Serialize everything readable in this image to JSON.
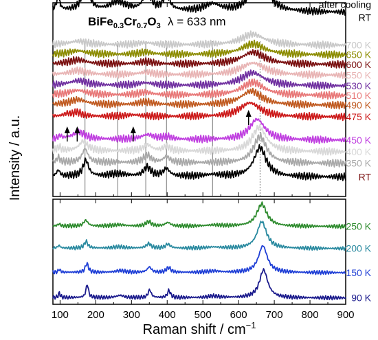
{
  "chart_data": {
    "type": "line",
    "title_parts": {
      "formula_a": "BiFe",
      "formula_sub1": "0.3",
      "formula_b": "Cr",
      "formula_sub2": "0.7",
      "formula_c": "O",
      "formula_sub3": "3",
      "wavelength": "λ = 633 nm"
    },
    "xlabel_main": "Raman shift / cm",
    "xlabel_sup": "−1",
    "ylabel": "Intensity / a.u.",
    "xlim": [
      80,
      900
    ],
    "xticks": [
      100,
      200,
      300,
      400,
      500,
      600,
      700,
      800,
      900
    ],
    "phonon_lines_cm1": [
      170,
      262,
      340,
      398,
      527,
      660
    ],
    "arrows_cm1": [
      120,
      148,
      305,
      628
    ],
    "panels": [
      {
        "name": "upper",
        "series": [
          {
            "label": "after cooling",
            "label2": "RT",
            "color": "#000000",
            "wide": true,
            "base": 0.95,
            "amp": 1.0,
            "bg": 0.05,
            "peaks": [
              [
                95,
                0.28,
                5
              ],
              [
                172,
                0.78,
                9
              ],
              [
                262,
                0.18,
                25
              ],
              [
                344,
                0.4,
                12
              ],
              [
                398,
                0.32,
                11
              ],
              [
                527,
                0.14,
                25
              ],
              [
                660,
                1.0,
                21
              ]
            ]
          },
          {
            "label": "700 K",
            "color": "#c8c8c8",
            "base": 0.78,
            "amp": 0.25,
            "bg": 0.05,
            "peaks": [
              [
                150,
                0.3,
                30
              ],
              [
                340,
                0.18,
                25
              ],
              [
                640,
                0.9,
                40
              ]
            ]
          },
          {
            "label": "650 K",
            "color": "#8c8c00",
            "base": 0.73,
            "amp": 0.25,
            "bg": 0.05,
            "peaks": [
              [
                150,
                0.3,
                30
              ],
              [
                340,
                0.18,
                25
              ],
              [
                640,
                0.9,
                40
              ]
            ]
          },
          {
            "label": "600 K",
            "color": "#7a1010",
            "base": 0.68,
            "amp": 0.28,
            "bg": 0.05,
            "peaks": [
              [
                150,
                0.3,
                30
              ],
              [
                340,
                0.18,
                25
              ],
              [
                640,
                0.9,
                40
              ]
            ]
          },
          {
            "label": "550 K",
            "color": "#e8b4b4",
            "base": 0.625,
            "amp": 0.28,
            "bg": 0.05,
            "peaks": [
              [
                150,
                0.3,
                30
              ],
              [
                340,
                0.18,
                25
              ],
              [
                640,
                0.9,
                40
              ]
            ]
          },
          {
            "label": "530 K",
            "color": "#7030a0",
            "base": 0.57,
            "amp": 0.3,
            "bg": 0.05,
            "peaks": [
              [
                150,
                0.32,
                30
              ],
              [
                340,
                0.18,
                25
              ],
              [
                640,
                0.9,
                38
              ]
            ]
          },
          {
            "label": "510 K",
            "color": "#e87878",
            "base": 0.52,
            "amp": 0.3,
            "bg": 0.05,
            "peaks": [
              [
                150,
                0.32,
                30
              ],
              [
                340,
                0.18,
                25
              ],
              [
                640,
                0.9,
                38
              ]
            ]
          },
          {
            "label": "490 K",
            "color": "#c05a20",
            "base": 0.47,
            "amp": 0.32,
            "bg": 0.05,
            "peaks": [
              [
                150,
                0.32,
                28
              ],
              [
                340,
                0.18,
                25
              ],
              [
                635,
                0.9,
                36
              ]
            ]
          },
          {
            "label": "475 K",
            "color": "#cc1a1a",
            "wide": true,
            "base": 0.41,
            "amp": 0.32,
            "bg": 0.05,
            "peaks": [
              [
                120,
                0.15,
                12
              ],
              [
                148,
                0.25,
                14
              ],
              [
                305,
                0.1,
                25
              ],
              [
                632,
                0.9,
                34
              ]
            ]
          },
          {
            "label": "450 K",
            "color": "#c040e0",
            "base": 0.29,
            "amp": 0.45,
            "bg": 0.05,
            "peaks": [
              [
                100,
                0.12,
                6
              ],
              [
                152,
                0.32,
                22
              ],
              [
                345,
                0.22,
                20
              ],
              [
                400,
                0.12,
                15
              ],
              [
                652,
                0.95,
                26
              ]
            ]
          },
          {
            "label": "400 K",
            "color": "#d8d8d8",
            "base": 0.23,
            "amp": 0.5,
            "bg": 0.05,
            "peaks": [
              [
                97,
                0.15,
                6
              ],
              [
                165,
                0.4,
                14
              ],
              [
                345,
                0.25,
                14
              ],
              [
                398,
                0.18,
                12
              ],
              [
                658,
                1.0,
                24
              ]
            ]
          },
          {
            "label": "350 K",
            "color": "#a8a8a8",
            "base": 0.17,
            "amp": 0.55,
            "bg": 0.05,
            "peaks": [
              [
                95,
                0.18,
                5
              ],
              [
                170,
                0.5,
                10
              ],
              [
                344,
                0.28,
                12
              ],
              [
                398,
                0.22,
                11
              ],
              [
                660,
                1.0,
                22
              ]
            ]
          },
          {
            "label": "RT",
            "color": "#000000",
            "labelColor": "#7a1010",
            "base": 0.1,
            "amp": 0.6,
            "bg": 0.04,
            "peaks": [
              [
                95,
                0.2,
                5
              ],
              [
                172,
                0.55,
                9
              ],
              [
                262,
                0.08,
                25
              ],
              [
                344,
                0.3,
                12
              ],
              [
                398,
                0.25,
                11
              ],
              [
                527,
                0.06,
                25
              ],
              [
                660,
                1.0,
                21
              ]
            ]
          }
        ]
      },
      {
        "name": "lower",
        "series": [
          {
            "label": "250 K",
            "color": "#2e8b2e",
            "base": 0.74,
            "amp": 0.85,
            "bg": 0.02,
            "peaks": [
              [
                97,
                0.1,
                4
              ],
              [
                172,
                0.26,
                7
              ],
              [
                265,
                0.06,
                20
              ],
              [
                348,
                0.2,
                9
              ],
              [
                402,
                0.16,
                9
              ],
              [
                530,
                0.05,
                25
              ],
              [
                665,
                1.0,
                17
              ]
            ]
          },
          {
            "label": "200 K",
            "color": "#2a8aa0",
            "base": 0.53,
            "amp": 0.85,
            "bg": 0.02,
            "peaks": [
              [
                97,
                0.12,
                4
              ],
              [
                173,
                0.3,
                6
              ],
              [
                265,
                0.06,
                20
              ],
              [
                348,
                0.2,
                8
              ],
              [
                402,
                0.18,
                8
              ],
              [
                530,
                0.05,
                25
              ],
              [
                665,
                1.2,
                16
              ]
            ]
          },
          {
            "label": "150 K",
            "color": "#1f3fd6",
            "base": 0.3,
            "amp": 0.85,
            "bg": 0.02,
            "peaks": [
              [
                98,
                0.14,
                3
              ],
              [
                175,
                0.4,
                5
              ],
              [
                268,
                0.08,
                15
              ],
              [
                350,
                0.24,
                7
              ],
              [
                404,
                0.22,
                7
              ],
              [
                530,
                0.06,
                22
              ],
              [
                668,
                1.2,
                15
              ]
            ]
          },
          {
            "label": "90 K",
            "color": "#1a1a8c",
            "base": 0.06,
            "amp": 0.85,
            "bg": 0.02,
            "peaks": [
              [
                98,
                0.2,
                3
              ],
              [
                176,
                0.6,
                4
              ],
              [
                268,
                0.1,
                12
              ],
              [
                351,
                0.35,
                5
              ],
              [
                405,
                0.32,
                5
              ],
              [
                530,
                0.07,
                20
              ],
              [
                670,
                1.25,
                14
              ]
            ]
          }
        ]
      }
    ]
  }
}
